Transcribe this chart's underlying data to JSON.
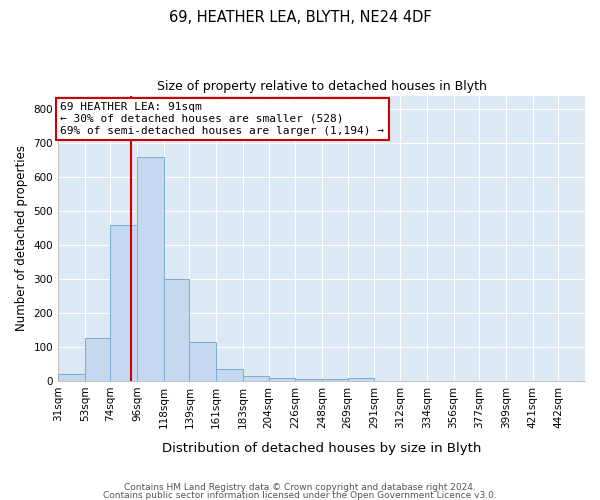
{
  "title1": "69, HEATHER LEA, BLYTH, NE24 4DF",
  "title2": "Size of property relative to detached houses in Blyth",
  "xlabel": "Distribution of detached houses by size in Blyth",
  "ylabel": "Number of detached properties",
  "footnote1": "Contains HM Land Registry data © Crown copyright and database right 2024.",
  "footnote2": "Contains public sector information licensed under the Open Government Licence v3.0.",
  "annotation_line1": "69 HEATHER LEA: 91sqm",
  "annotation_line2": "← 30% of detached houses are smaller (528)",
  "annotation_line3": "69% of semi-detached houses are larger (1,194) →",
  "property_sqm": 91,
  "bar_edges": [
    31,
    53,
    74,
    96,
    118,
    139,
    161,
    183,
    204,
    226,
    248,
    269,
    291,
    312,
    334,
    356,
    377,
    399,
    421,
    442,
    464
  ],
  "bar_heights": [
    20,
    128,
    460,
    660,
    300,
    115,
    35,
    15,
    10,
    7,
    5,
    10,
    0,
    0,
    0,
    0,
    0,
    0,
    0,
    0
  ],
  "bar_color": "#c5d8f0",
  "bar_edgecolor": "#7aadd4",
  "vline_color": "#cc0000",
  "vline_x": 91,
  "ylim": [
    0,
    840
  ],
  "yticks": [
    0,
    100,
    200,
    300,
    400,
    500,
    600,
    700,
    800
  ],
  "annotation_box_edgecolor": "#cc0000",
  "annotation_box_facecolor": "white",
  "background_color": "#dde8f5",
  "title1_fontsize": 10.5,
  "title2_fontsize": 9.0,
  "xlabel_fontsize": 9.5,
  "ylabel_fontsize": 8.5,
  "tick_fontsize": 7.5,
  "footnote_fontsize": 6.5,
  "annotation_fontsize": 8.0
}
